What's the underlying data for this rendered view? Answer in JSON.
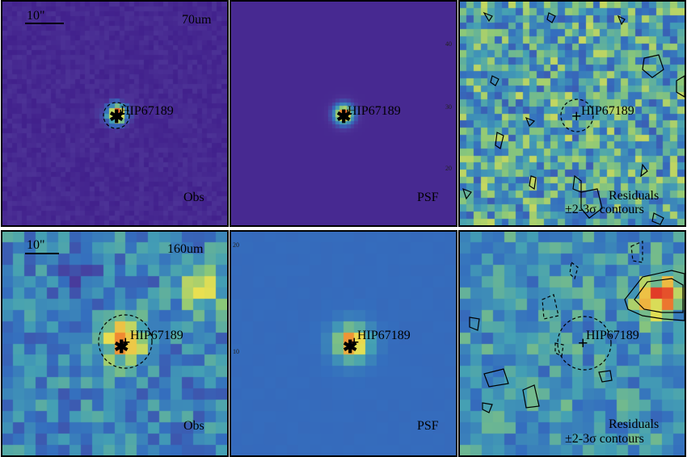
{
  "panels": {
    "top_obs": {
      "band": "70um",
      "scale": "10\"",
      "target": "HIP67189",
      "corner": "Obs"
    },
    "top_psf": {
      "target": "HIP67189",
      "corner": "PSF"
    },
    "top_res": {
      "target": "HIP67189",
      "corner_line1": "Residuals",
      "corner_line2": "±2-3σ contours"
    },
    "bot_obs": {
      "band": "160um",
      "scale": "10\"",
      "target": "HIP67189",
      "corner": "Obs"
    },
    "bot_psf": {
      "target": "HIP67189",
      "corner": "PSF"
    },
    "bot_res": {
      "target": "HIP67189",
      "corner_line1": "Residuals",
      "corner_line2": "±2-3σ contours"
    }
  },
  "ticks": {
    "top_psf_right": [
      "40",
      "30",
      "20"
    ],
    "bot_psf_left": [
      "20",
      "10"
    ]
  },
  "colormap": {
    "low": "#3b1e8c",
    "mid": "#2f7fb8",
    "high": "#f4e04a",
    "peak": "#e8552a"
  }
}
